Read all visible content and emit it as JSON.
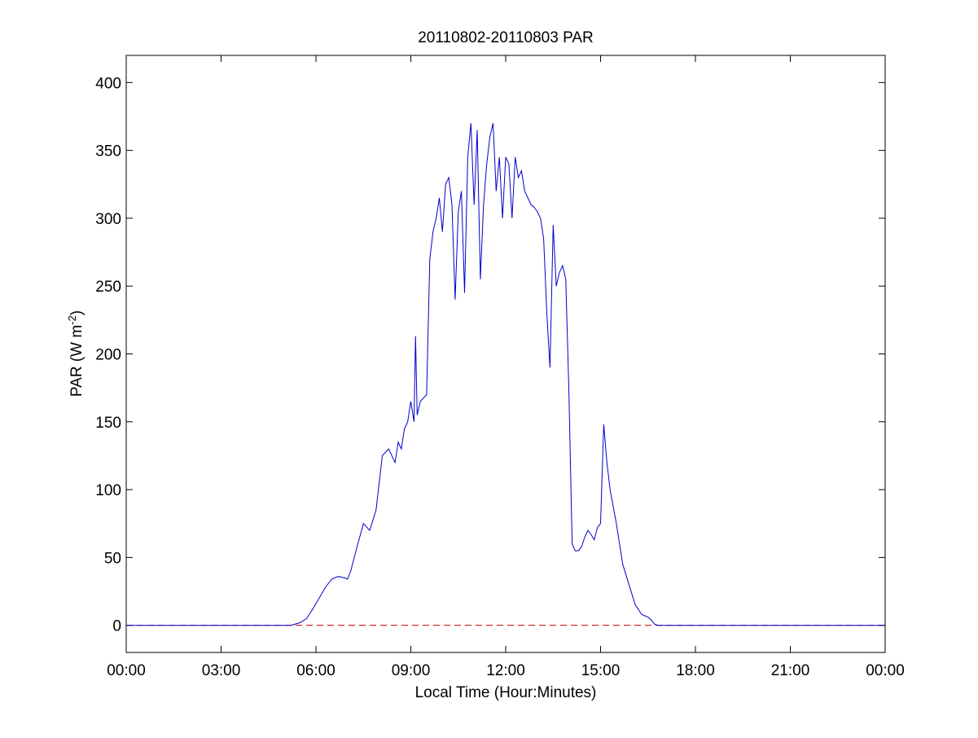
{
  "chart_data": {
    "type": "line",
    "title": "20110802-20110803 PAR",
    "xlabel": "Local Time (Hour:Minutes)",
    "ylabel": {
      "prefix": "PAR (W m",
      "superscript": "-2",
      "suffix": ")"
    },
    "xlim": [
      0,
      24
    ],
    "ylim": [
      -20,
      420
    ],
    "x_ticks": [
      {
        "value": 0,
        "label": "00:00"
      },
      {
        "value": 3,
        "label": "03:00"
      },
      {
        "value": 6,
        "label": "06:00"
      },
      {
        "value": 9,
        "label": "09:00"
      },
      {
        "value": 12,
        "label": "12:00"
      },
      {
        "value": 15,
        "label": "15:00"
      },
      {
        "value": 18,
        "label": "18:00"
      },
      {
        "value": 21,
        "label": "21:00"
      },
      {
        "value": 24,
        "label": "00:00"
      }
    ],
    "y_ticks": [
      {
        "value": 0,
        "label": "0"
      },
      {
        "value": 50,
        "label": "50"
      },
      {
        "value": 100,
        "label": "100"
      },
      {
        "value": 150,
        "label": "150"
      },
      {
        "value": 200,
        "label": "200"
      },
      {
        "value": 250,
        "label": "250"
      },
      {
        "value": 300,
        "label": "300"
      },
      {
        "value": 350,
        "label": "350"
      },
      {
        "value": 400,
        "label": "400"
      }
    ],
    "grid": false,
    "legend": false,
    "series": [
      {
        "color": "#0000cc",
        "x": [
          0,
          5.2,
          5.5,
          5.7,
          5.9,
          6.1,
          6.3,
          6.5,
          6.7,
          6.9,
          7.0,
          7.1,
          7.3,
          7.5,
          7.7,
          7.9,
          8.1,
          8.3,
          8.5,
          8.6,
          8.7,
          8.8,
          8.9,
          9.0,
          9.1,
          9.15,
          9.2,
          9.3,
          9.5,
          9.6,
          9.7,
          9.8,
          9.9,
          10.0,
          10.1,
          10.2,
          10.3,
          10.4,
          10.5,
          10.6,
          10.7,
          10.8,
          10.9,
          11.0,
          11.1,
          11.2,
          11.3,
          11.4,
          11.5,
          11.6,
          11.7,
          11.8,
          11.9,
          12.0,
          12.1,
          12.2,
          12.3,
          12.4,
          12.5,
          12.6,
          12.7,
          12.8,
          12.9,
          13.0,
          13.1,
          13.2,
          13.3,
          13.4,
          13.5,
          13.6,
          13.7,
          13.8,
          13.9,
          14.0,
          14.1,
          14.2,
          14.3,
          14.4,
          14.5,
          14.6,
          14.7,
          14.8,
          14.9,
          15.0,
          15.1,
          15.2,
          15.3,
          15.5,
          15.7,
          15.9,
          16.1,
          16.3,
          16.4,
          16.5,
          16.6,
          16.7,
          16.8,
          16.9,
          17.0,
          17.1,
          17.2,
          17.3,
          17.5,
          17.7,
          17.9,
          18.1,
          18.3,
          18.5,
          18.7,
          18.9,
          19.2,
          24
        ],
        "values": [
          0,
          0,
          2,
          5,
          12,
          20,
          28,
          34,
          36,
          35,
          34,
          40,
          58,
          75,
          70,
          85,
          125,
          130,
          120,
          135,
          130,
          145,
          150,
          165,
          150,
          213,
          155,
          165,
          170,
          270,
          290,
          300,
          315,
          290,
          325,
          330,
          310,
          240,
          305,
          320,
          245,
          345,
          370,
          310,
          365,
          255,
          310,
          340,
          360,
          370,
          320,
          345,
          300,
          345,
          340,
          300,
          345,
          330,
          335,
          320,
          315,
          310,
          308,
          305,
          300,
          285,
          230,
          190,
          295,
          250,
          260,
          265,
          255,
          170,
          60,
          55,
          55,
          58,
          65,
          70,
          67,
          63,
          72,
          75,
          148,
          120,
          100,
          75,
          45,
          30,
          15,
          8,
          7,
          6,
          4,
          1,
          0,
          0,
          0,
          0,
          0,
          0,
          0,
          0,
          0,
          0,
          0,
          0,
          0,
          0,
          0,
          0
        ]
      }
    ],
    "reference_line": {
      "y": 0,
      "color": "#cc0000",
      "style": "dashed"
    }
  }
}
